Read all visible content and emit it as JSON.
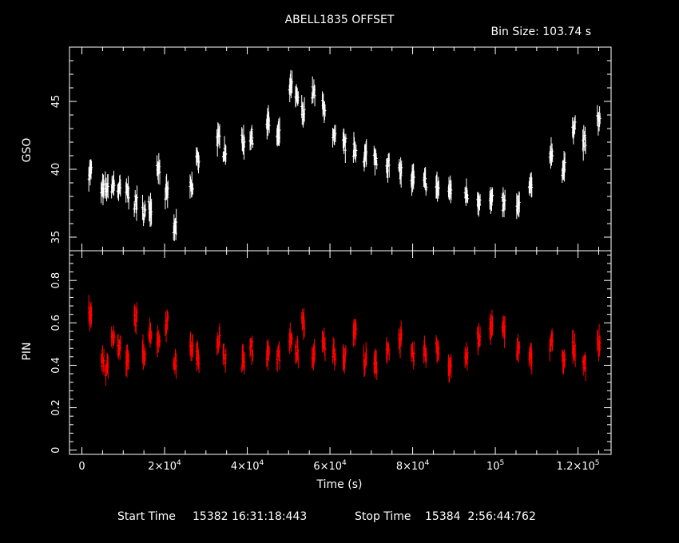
{
  "header": {
    "title": "ABELL1835 OFFSET",
    "bin_size": "Bin Size: 103.74 s"
  },
  "footer": {
    "start_label": "Start Time",
    "start_value": "15382 16:31:18:443",
    "stop_label": "Stop Time",
    "stop_value": "15384  2:56:44:762"
  },
  "colors": {
    "top_series": "#ffffff",
    "bottom_series": "#ff0000",
    "background": "#000000"
  },
  "chart_data": [
    {
      "type": "scatter",
      "ylabel": "GSO",
      "xlim": [
        -3000,
        128000
      ],
      "ylim": [
        34,
        49
      ],
      "yticks": [
        35,
        40,
        45
      ],
      "grid": false,
      "error_bars": true,
      "series": [
        {
          "color": "#ffffff",
          "x": [
            2000,
            5000,
            6000,
            7500,
            9000,
            11000,
            13000,
            15000,
            16500,
            18500,
            20500,
            22500,
            26500,
            28000,
            33000,
            34500,
            39000,
            41000,
            45000,
            47500,
            50500,
            52000,
            53500,
            56000,
            58500,
            61000,
            63500,
            66000,
            68500,
            71000,
            74000,
            77000,
            80000,
            83000,
            86000,
            89000,
            93000,
            96000,
            99000,
            102000,
            105500,
            108500,
            113500,
            116500,
            119000,
            121500,
            125000
          ],
          "y": [
            39.8,
            38.4,
            38.5,
            38.8,
            38.5,
            38.3,
            37.5,
            36.8,
            37.2,
            40.2,
            38.2,
            35.6,
            38.6,
            40.8,
            42.2,
            41.4,
            42.0,
            42.4,
            43.4,
            42.4,
            46.0,
            45.2,
            44.2,
            45.6,
            44.6,
            42.2,
            41.8,
            41.4,
            41.0,
            40.8,
            40.4,
            39.8,
            39.2,
            39.0,
            38.6,
            38.4,
            38.2,
            37.8,
            37.6,
            37.4,
            37.2,
            38.6,
            41.2,
            40.0,
            43.2,
            42.0,
            43.6
          ]
        }
      ]
    },
    {
      "type": "scatter",
      "ylabel": "PIN",
      "xlabel": "Time (s)",
      "xlim": [
        -3000,
        128000
      ],
      "ylim": [
        -0.02,
        0.94
      ],
      "yticks": [
        0,
        0.2,
        0.4,
        0.6,
        0.8
      ],
      "xticks": [
        0,
        20000,
        40000,
        60000,
        80000,
        100000,
        120000
      ],
      "xtick_labels": [
        {
          "base": "0",
          "exp": ""
        },
        {
          "base": "2×10",
          "exp": "4"
        },
        {
          "base": "4×10",
          "exp": "4"
        },
        {
          "base": "6×10",
          "exp": "4"
        },
        {
          "base": "8×10",
          "exp": "4"
        },
        {
          "base": "10",
          "exp": "5"
        },
        {
          "base": "1.2×10",
          "exp": "5"
        }
      ],
      "grid": false,
      "error_bars": true,
      "series": [
        {
          "color": "#ff0000",
          "x": [
            2000,
            5000,
            6000,
            7500,
            9000,
            11000,
            13000,
            15000,
            16500,
            18500,
            20500,
            22500,
            26500,
            28000,
            33000,
            34500,
            39000,
            41000,
            45000,
            47500,
            50500,
            52000,
            53500,
            56000,
            58500,
            61000,
            63500,
            66000,
            68500,
            71000,
            74000,
            77000,
            80000,
            83000,
            86000,
            89000,
            93000,
            96000,
            99000,
            102000,
            105500,
            108500,
            113500,
            116500,
            119000,
            121500,
            125000
          ],
          "y": [
            0.64,
            0.42,
            0.38,
            0.55,
            0.48,
            0.42,
            0.62,
            0.46,
            0.55,
            0.52,
            0.6,
            0.42,
            0.48,
            0.44,
            0.52,
            0.44,
            0.42,
            0.48,
            0.46,
            0.44,
            0.52,
            0.46,
            0.6,
            0.44,
            0.5,
            0.46,
            0.44,
            0.56,
            0.42,
            0.4,
            0.48,
            0.52,
            0.44,
            0.46,
            0.48,
            0.4,
            0.44,
            0.52,
            0.58,
            0.56,
            0.48,
            0.44,
            0.5,
            0.42,
            0.48,
            0.42,
            0.5
          ]
        }
      ]
    }
  ]
}
